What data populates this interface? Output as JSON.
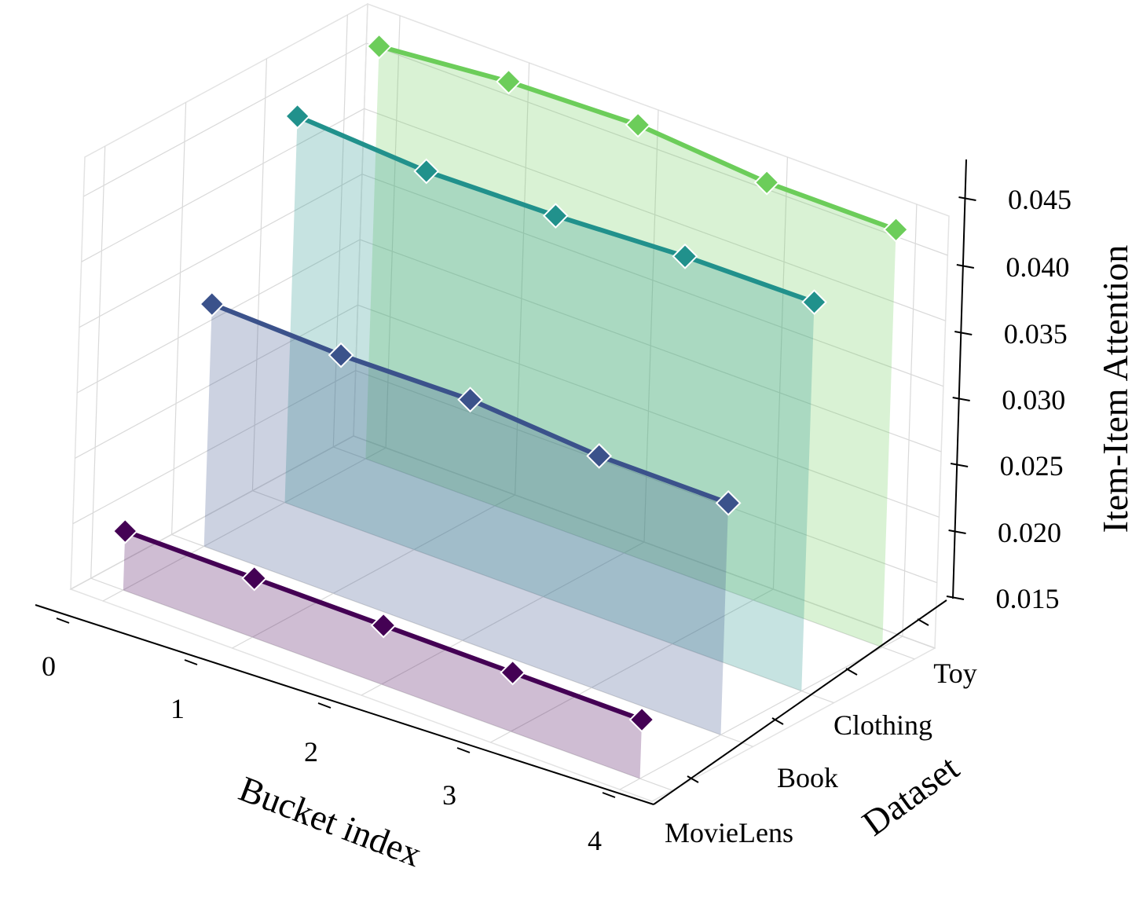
{
  "chart_data": {
    "type": "line",
    "projection": "3d",
    "xlabel": "Bucket index",
    "ylabel": "Dataset",
    "zlabel": "Item-Item Attention",
    "x_ticks": [
      "0",
      "1",
      "2",
      "3",
      "4"
    ],
    "z_ticks": [
      "0.015",
      "0.020",
      "0.025",
      "0.030",
      "0.035",
      "0.040",
      "0.045"
    ],
    "zlim": [
      0.015,
      0.048
    ],
    "grid": true,
    "fill_under_lines": true,
    "marker": "diamond",
    "categories": [
      "MovieLens",
      "Book",
      "Clothing",
      "Toy"
    ],
    "series": [
      {
        "name": "MovieLens",
        "color": "#440154",
        "x": [
          0,
          1,
          2,
          3,
          4
        ],
        "values": [
          0.0195,
          0.0195,
          0.0195,
          0.0195,
          0.0195
        ]
      },
      {
        "name": "Book",
        "color": "#3b528b",
        "x": [
          0,
          1,
          2,
          3,
          4
        ],
        "values": [
          0.0335,
          0.0332,
          0.0334,
          0.0327,
          0.0327
        ]
      },
      {
        "name": "Clothing",
        "color": "#21918c",
        "x": [
          0,
          1,
          2,
          3,
          4
        ],
        "values": [
          0.0445,
          0.0439,
          0.0441,
          0.0446,
          0.0447
        ]
      },
      {
        "name": "Toy",
        "color": "#6ccd5a",
        "x": [
          0,
          1,
          2,
          3,
          4
        ],
        "values": [
          0.0465,
          0.0474,
          0.0477,
          0.0469,
          0.0469
        ]
      }
    ]
  }
}
